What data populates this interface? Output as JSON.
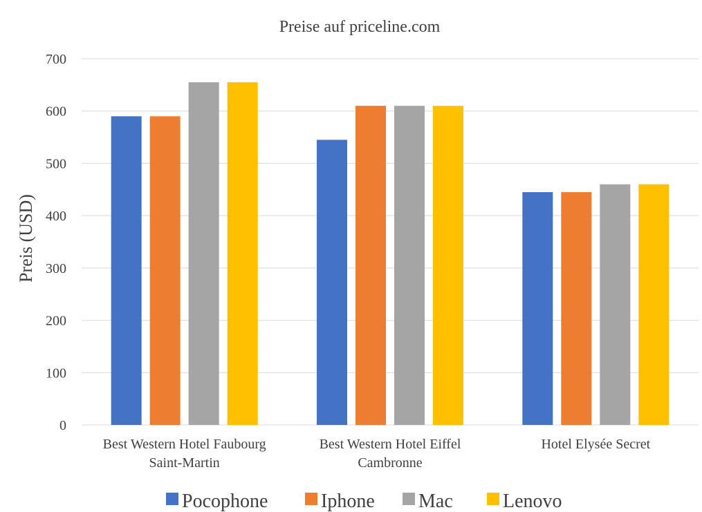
{
  "chart_data": {
    "type": "bar",
    "title": "Preise auf priceline.com",
    "ylabel": "Preis (USD)",
    "xlabel": "",
    "ylim": [
      0,
      700
    ],
    "yticks": [
      0,
      100,
      200,
      300,
      400,
      500,
      600,
      700
    ],
    "grid": true,
    "legend_position": "bottom",
    "categories": [
      [
        "Best Western Hotel Faubourg",
        "Saint-Martin"
      ],
      [
        "Best Western Hotel Eiffel",
        "Cambronne"
      ],
      [
        "Hotel Elysée Secret"
      ]
    ],
    "series": [
      {
        "name": "Pocophone",
        "color": "#4472c4",
        "values": [
          590,
          545,
          445
        ]
      },
      {
        "name": "Iphone",
        "color": "#ed7d31",
        "values": [
          590,
          610,
          445
        ]
      },
      {
        "name": "Mac",
        "color": "#a5a5a5",
        "values": [
          655,
          610,
          460
        ]
      },
      {
        "name": "Lenovo",
        "color": "#ffc000",
        "values": [
          655,
          610,
          460
        ]
      }
    ]
  }
}
